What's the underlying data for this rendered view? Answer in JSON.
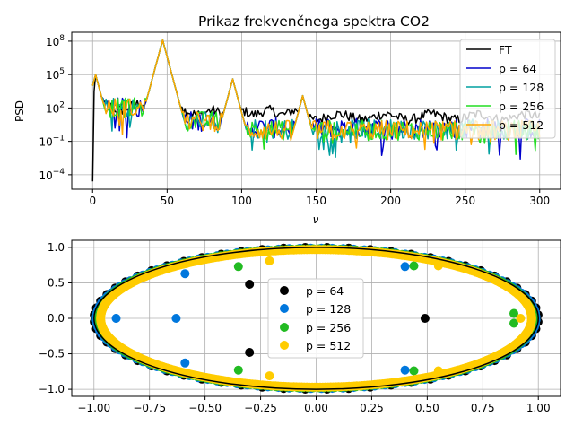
{
  "chart_data": [
    {
      "type": "line",
      "title": "Prikaz frekvenčnega spektra CO2",
      "xlabel": "ν",
      "ylabel": "PSD",
      "xlim": [
        -14,
        314
      ],
      "ylim_log10": [
        -5.3,
        8.8
      ],
      "yscale": "log",
      "grid": true,
      "legend_position": "top-right",
      "x_ticks": [
        0,
        50,
        100,
        150,
        200,
        250,
        300
      ],
      "y_ticks_log10": [
        -4,
        -1,
        2,
        5,
        8
      ],
      "y_tick_labels": [
        {
          "base": "10",
          "exp": "−4"
        },
        {
          "base": "10",
          "exp": "−1"
        },
        {
          "base": "10",
          "exp": "2"
        },
        {
          "base": "10",
          "exp": "5"
        },
        {
          "base": "10",
          "exp": "8"
        }
      ],
      "peaks": [
        {
          "x": 2,
          "log10_psd": 5.0
        },
        {
          "x": 47,
          "log10_psd": 8.1
        },
        {
          "x": 94,
          "log10_psd": 4.6
        },
        {
          "x": 141,
          "log10_psd": 3.1
        }
      ],
      "series": [
        {
          "name": "FT",
          "color": "#000000",
          "baseline_log10": 1.6,
          "start_log10": -4.6
        },
        {
          "name": "p = 64",
          "color": "#0000cc",
          "baseline_log10": 0.2
        },
        {
          "name": "p = 128",
          "color": "#00a0a0",
          "baseline_log10": 0.1
        },
        {
          "name": "p = 256",
          "color": "#22dd22",
          "baseline_log10": 0.0
        },
        {
          "name": "p = 512",
          "color": "#ffa500",
          "baseline_log10": 0.0
        }
      ]
    },
    {
      "type": "scatter",
      "xlim": [
        -1.1,
        1.1
      ],
      "ylim": [
        -1.1,
        1.1
      ],
      "grid": true,
      "legend_position": "center",
      "x_ticks": [
        -1.0,
        -0.75,
        -0.5,
        -0.25,
        0.0,
        0.25,
        0.5,
        0.75,
        1.0
      ],
      "x_tick_labels": [
        "−1.00",
        "−0.75",
        "−0.50",
        "−0.25",
        "0.00",
        "0.25",
        "0.50",
        "0.75",
        "1.00"
      ],
      "y_ticks": [
        -1.0,
        -0.5,
        0.0,
        0.5,
        1.0
      ],
      "y_tick_labels": [
        "−1.0",
        "−0.5",
        "0.0",
        "0.5",
        "1.0"
      ],
      "unit_circle_color": "#000000",
      "series": [
        {
          "name": "p = 64",
          "color": "#000000",
          "inner_points": [
            [
              0.49,
              0.0
            ],
            [
              -0.3,
              0.48
            ],
            [
              -0.3,
              -0.48
            ]
          ]
        },
        {
          "name": "p = 128",
          "color": "#0077dd",
          "inner_points": [
            [
              -0.63,
              0.0
            ],
            [
              -0.9,
              0.0
            ],
            [
              -0.59,
              0.63
            ],
            [
              -0.59,
              -0.63
            ],
            [
              0.4,
              0.73
            ],
            [
              0.4,
              -0.73
            ]
          ]
        },
        {
          "name": "p = 256",
          "color": "#22bb22",
          "inner_points": [
            [
              -0.35,
              0.73
            ],
            [
              -0.35,
              -0.73
            ],
            [
              0.89,
              0.07
            ],
            [
              0.89,
              -0.07
            ],
            [
              0.44,
              0.74
            ],
            [
              0.44,
              -0.74
            ]
          ]
        },
        {
          "name": "p = 512",
          "color": "#ffcc00",
          "inner_points": [
            [
              -0.21,
              0.81
            ],
            [
              -0.21,
              -0.81
            ],
            [
              0.92,
              0.0
            ],
            [
              0.55,
              0.74
            ],
            [
              0.55,
              -0.74
            ]
          ]
        }
      ]
    }
  ]
}
